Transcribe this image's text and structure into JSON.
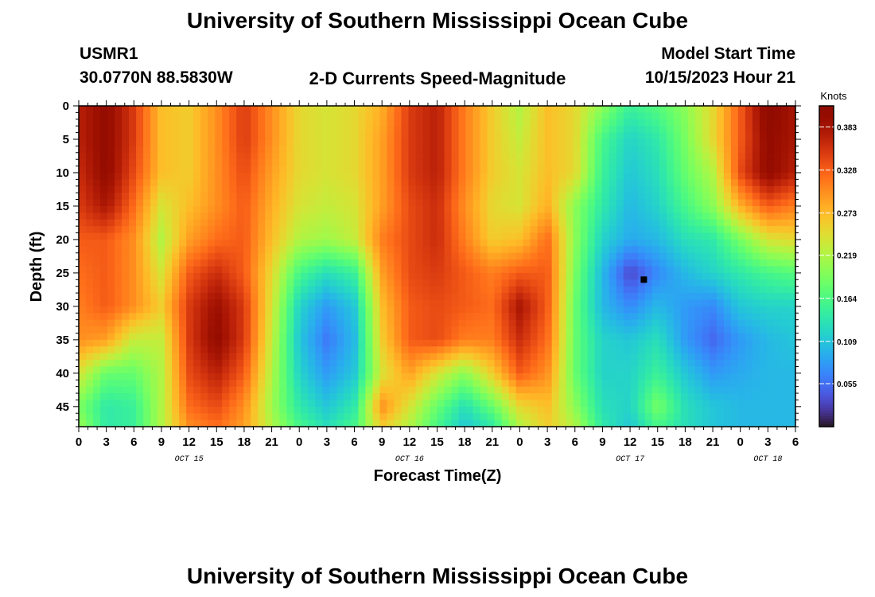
{
  "header": {
    "title": "University of Southern Mississippi Ocean Cube",
    "station": "USMR1",
    "coords": "30.0770N  88.5830W",
    "plot_title": "2-D Currents Speed-Magnitude",
    "start_label": "Model Start Time",
    "start_value": "10/15/2023 Hour 21"
  },
  "footer": {
    "title": "University of Southern Mississippi Ocean Cube"
  },
  "chart_data": {
    "type": "heatmap",
    "title": "2-D Currents Speed-Magnitude",
    "xlabel": "Forecast Time(Z)",
    "ylabel": "Depth (ft)",
    "x_hours_range": [
      0,
      78
    ],
    "x_ticks": [
      {
        "h": 0,
        "label": "0"
      },
      {
        "h": 3,
        "label": "3"
      },
      {
        "h": 6,
        "label": "6"
      },
      {
        "h": 9,
        "label": "9"
      },
      {
        "h": 12,
        "label": "12"
      },
      {
        "h": 15,
        "label": "15"
      },
      {
        "h": 18,
        "label": "18"
      },
      {
        "h": 21,
        "label": "21"
      },
      {
        "h": 24,
        "label": "0"
      },
      {
        "h": 27,
        "label": "3"
      },
      {
        "h": 30,
        "label": "6"
      },
      {
        "h": 33,
        "label": "9"
      },
      {
        "h": 36,
        "label": "12"
      },
      {
        "h": 39,
        "label": "15"
      },
      {
        "h": 42,
        "label": "18"
      },
      {
        "h": 45,
        "label": "21"
      },
      {
        "h": 48,
        "label": "0"
      },
      {
        "h": 51,
        "label": "3"
      },
      {
        "h": 54,
        "label": "6"
      },
      {
        "h": 57,
        "label": "9"
      },
      {
        "h": 60,
        "label": "12"
      },
      {
        "h": 63,
        "label": "15"
      },
      {
        "h": 66,
        "label": "18"
      },
      {
        "h": 69,
        "label": "21"
      },
      {
        "h": 72,
        "label": "0"
      },
      {
        "h": 75,
        "label": "3"
      },
      {
        "h": 78,
        "label": "6"
      }
    ],
    "date_labels": [
      {
        "h": 12,
        "label": "OCT 15"
      },
      {
        "h": 36,
        "label": "OCT 16"
      },
      {
        "h": 60,
        "label": "OCT 17"
      },
      {
        "h": 75,
        "label": "OCT 18"
      }
    ],
    "y_ticks": [
      0,
      5,
      10,
      15,
      20,
      25,
      30,
      35,
      40,
      45
    ],
    "y_range": [
      0,
      48
    ],
    "colorbar": {
      "unit": "Knots",
      "range": [
        0.0,
        0.41
      ],
      "ticks": [
        0.383,
        0.328,
        0.273,
        0.219,
        0.164,
        0.109,
        0.055
      ],
      "colormap": "turbo"
    },
    "grid": false,
    "marker": {
      "hour": 61.5,
      "depth": 26
    },
    "time_hours": [
      0,
      3,
      6,
      9,
      12,
      15,
      18,
      21,
      24,
      27,
      30,
      33,
      36,
      39,
      42,
      45,
      48,
      51,
      54,
      57,
      60,
      63,
      66,
      69,
      72,
      75,
      78
    ],
    "depth_ft": [
      0,
      5,
      10,
      15,
      20,
      25,
      30,
      35,
      40,
      45,
      48
    ],
    "speed_knots": [
      [
        0.37,
        0.4,
        0.35,
        0.27,
        0.26,
        0.3,
        0.35,
        0.3,
        0.25,
        0.24,
        0.25,
        0.28,
        0.35,
        0.37,
        0.31,
        0.26,
        0.22,
        0.27,
        0.25,
        0.2,
        0.15,
        0.17,
        0.2,
        0.25,
        0.33,
        0.41,
        0.38
      ],
      [
        0.37,
        0.4,
        0.35,
        0.27,
        0.26,
        0.3,
        0.35,
        0.3,
        0.25,
        0.24,
        0.25,
        0.29,
        0.35,
        0.37,
        0.31,
        0.26,
        0.23,
        0.27,
        0.25,
        0.16,
        0.12,
        0.14,
        0.19,
        0.25,
        0.33,
        0.4,
        0.38
      ],
      [
        0.36,
        0.4,
        0.34,
        0.27,
        0.26,
        0.3,
        0.34,
        0.29,
        0.25,
        0.24,
        0.25,
        0.29,
        0.35,
        0.37,
        0.31,
        0.26,
        0.24,
        0.27,
        0.25,
        0.15,
        0.11,
        0.13,
        0.18,
        0.22,
        0.34,
        0.4,
        0.37
      ],
      [
        0.35,
        0.38,
        0.32,
        0.24,
        0.27,
        0.3,
        0.33,
        0.28,
        0.24,
        0.23,
        0.24,
        0.29,
        0.34,
        0.36,
        0.3,
        0.25,
        0.24,
        0.28,
        0.2,
        0.14,
        0.1,
        0.12,
        0.16,
        0.2,
        0.28,
        0.33,
        0.31
      ],
      [
        0.33,
        0.33,
        0.3,
        0.22,
        0.29,
        0.32,
        0.33,
        0.27,
        0.22,
        0.21,
        0.23,
        0.31,
        0.34,
        0.36,
        0.31,
        0.26,
        0.27,
        0.32,
        0.2,
        0.12,
        0.09,
        0.1,
        0.13,
        0.14,
        0.19,
        0.24,
        0.25
      ],
      [
        0.32,
        0.33,
        0.3,
        0.24,
        0.33,
        0.36,
        0.33,
        0.25,
        0.16,
        0.13,
        0.15,
        0.29,
        0.34,
        0.35,
        0.33,
        0.31,
        0.33,
        0.33,
        0.19,
        0.1,
        0.03,
        0.07,
        0.1,
        0.12,
        0.14,
        0.16,
        0.17
      ],
      [
        0.31,
        0.33,
        0.3,
        0.26,
        0.35,
        0.39,
        0.35,
        0.24,
        0.12,
        0.08,
        0.11,
        0.27,
        0.33,
        0.34,
        0.33,
        0.32,
        0.38,
        0.33,
        0.18,
        0.1,
        0.07,
        0.1,
        0.08,
        0.07,
        0.11,
        0.12,
        0.12
      ],
      [
        0.3,
        0.29,
        0.23,
        0.23,
        0.35,
        0.4,
        0.35,
        0.23,
        0.11,
        0.06,
        0.1,
        0.26,
        0.33,
        0.34,
        0.31,
        0.31,
        0.36,
        0.32,
        0.18,
        0.12,
        0.11,
        0.13,
        0.08,
        0.05,
        0.08,
        0.1,
        0.11
      ],
      [
        0.24,
        0.18,
        0.18,
        0.22,
        0.34,
        0.37,
        0.33,
        0.22,
        0.12,
        0.08,
        0.11,
        0.24,
        0.29,
        0.24,
        0.2,
        0.26,
        0.33,
        0.3,
        0.18,
        0.12,
        0.12,
        0.15,
        0.11,
        0.08,
        0.09,
        0.1,
        0.1
      ],
      [
        0.19,
        0.14,
        0.15,
        0.22,
        0.32,
        0.34,
        0.3,
        0.21,
        0.14,
        0.11,
        0.14,
        0.3,
        0.24,
        0.18,
        0.13,
        0.18,
        0.25,
        0.27,
        0.2,
        0.13,
        0.12,
        0.19,
        0.13,
        0.11,
        0.1,
        0.1,
        0.1
      ],
      [
        0.21,
        0.14,
        0.15,
        0.22,
        0.3,
        0.32,
        0.29,
        0.22,
        0.16,
        0.13,
        0.16,
        0.26,
        0.22,
        0.16,
        0.11,
        0.14,
        0.22,
        0.26,
        0.22,
        0.14,
        0.11,
        0.16,
        0.13,
        0.11,
        0.1,
        0.1,
        0.1
      ]
    ]
  }
}
